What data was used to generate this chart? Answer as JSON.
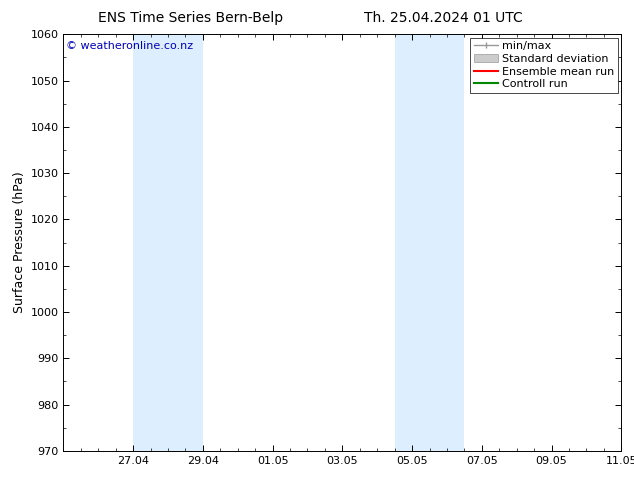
{
  "title_left": "ENS Time Series Bern-Belp",
  "title_right": "Th. 25.04.2024 01 UTC",
  "ylabel": "Surface Pressure (hPa)",
  "ylim": [
    970,
    1060
  ],
  "yticks": [
    970,
    980,
    990,
    1000,
    1010,
    1020,
    1030,
    1040,
    1050,
    1060
  ],
  "xtick_labels": [
    "27.04",
    "29.04",
    "01.05",
    "03.05",
    "05.05",
    "07.05",
    "09.05",
    "11.05"
  ],
  "xtick_positions": [
    2,
    4,
    6,
    8,
    10,
    12,
    14,
    16
  ],
  "xlim": [
    0,
    16
  ],
  "shaded_bands": [
    {
      "x_start": 2,
      "x_end": 4
    },
    {
      "x_start": 9.5,
      "x_end": 11.5
    }
  ],
  "shade_color": "#ddeeff",
  "watermark_text": "© weatheronline.co.nz",
  "watermark_color": "#0000bb",
  "legend_items": [
    {
      "label": "min/max",
      "color": "#999999"
    },
    {
      "label": "Standard deviation",
      "color": "#cccccc"
    },
    {
      "label": "Ensemble mean run",
      "color": "#ff0000"
    },
    {
      "label": "Controll run",
      "color": "#008800"
    }
  ],
  "background_color": "#ffffff",
  "title_fontsize": 10,
  "axis_label_fontsize": 9,
  "tick_fontsize": 8,
  "watermark_fontsize": 8,
  "legend_fontsize": 8
}
